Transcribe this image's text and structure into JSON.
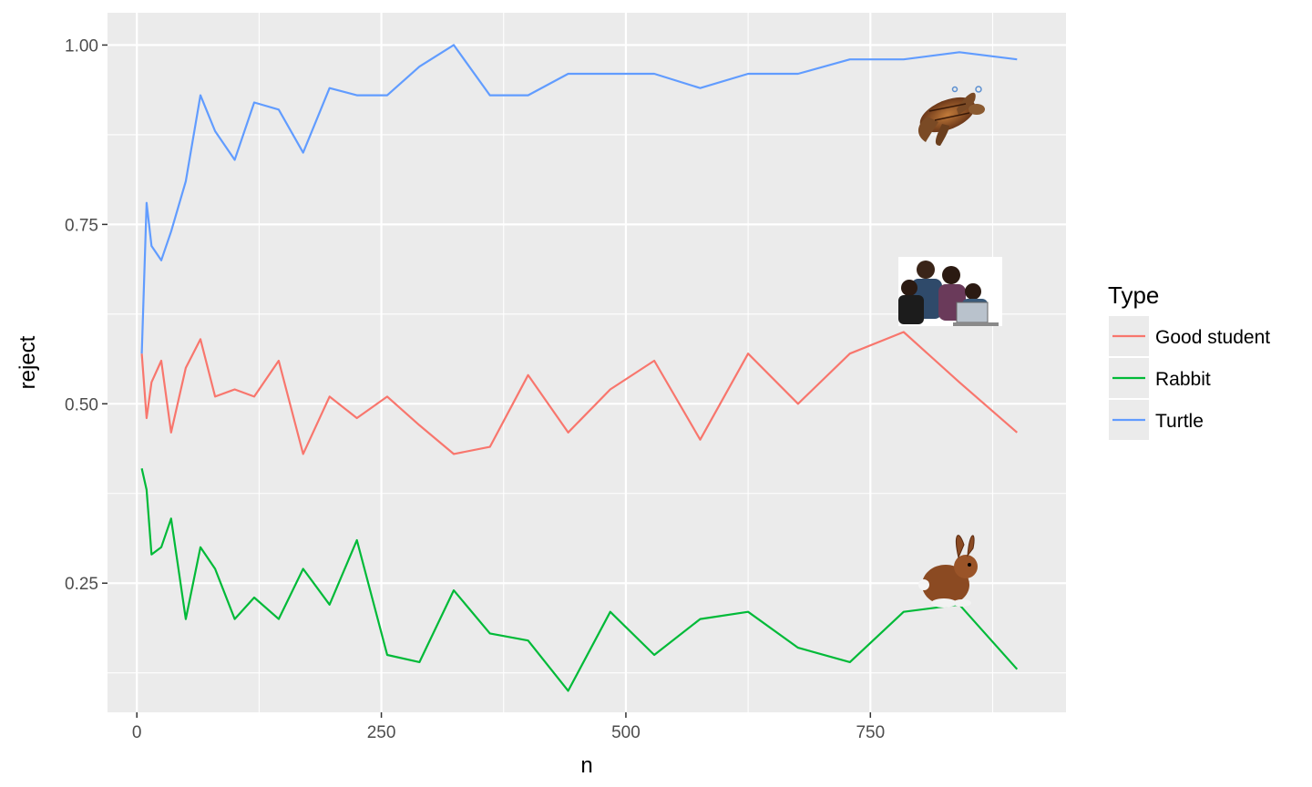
{
  "chart_data": {
    "type": "line",
    "xlabel": "n",
    "ylabel": "reject",
    "xlim": [
      -30,
      950
    ],
    "ylim": [
      0.07,
      1.045
    ],
    "x_ticks": [
      0,
      250,
      500,
      750
    ],
    "x_tick_labels": [
      "0",
      "250",
      "500",
      "750"
    ],
    "y_ticks": [
      0.25,
      0.5,
      0.75,
      1.0
    ],
    "y_tick_labels": [
      "0.25",
      "0.50",
      "0.75",
      "1.00"
    ],
    "grid": true,
    "legend": {
      "title": "Type",
      "placement": "right"
    },
    "x": [
      5,
      10,
      15,
      25,
      35,
      50,
      65,
      80,
      100,
      120,
      145,
      170,
      197,
      225,
      256,
      289,
      324,
      361,
      400,
      441,
      484,
      529,
      576,
      625,
      676,
      729,
      784,
      841,
      900
    ],
    "series": [
      {
        "name": "Good student",
        "color": "#F8766D",
        "icon": "students-photo-icon",
        "values": [
          0.57,
          0.48,
          0.53,
          0.56,
          0.46,
          0.55,
          0.59,
          0.51,
          0.52,
          0.51,
          0.56,
          0.43,
          0.51,
          0.48,
          0.51,
          0.47,
          0.43,
          0.44,
          0.54,
          0.46,
          0.52,
          0.56,
          0.45,
          0.57,
          0.5,
          0.57,
          0.6,
          0.53,
          0.46
        ]
      },
      {
        "name": "Rabbit",
        "color": "#00BA38",
        "icon": "rabbit-icon",
        "values": [
          0.41,
          0.38,
          0.29,
          0.3,
          0.34,
          0.2,
          0.3,
          0.27,
          0.2,
          0.23,
          0.2,
          0.27,
          0.22,
          0.31,
          0.15,
          0.14,
          0.24,
          0.18,
          0.17,
          0.1,
          0.21,
          0.15,
          0.2,
          0.21,
          0.16,
          0.14,
          0.21,
          0.22,
          0.13
        ]
      },
      {
        "name": "Turtle",
        "color": "#619CFF",
        "icon": "turtle-icon",
        "values": [
          0.57,
          0.78,
          0.72,
          0.7,
          0.74,
          0.81,
          0.93,
          0.88,
          0.84,
          0.92,
          0.91,
          0.85,
          0.94,
          0.93,
          0.93,
          0.97,
          1.0,
          0.93,
          0.93,
          0.96,
          0.96,
          0.96,
          0.94,
          0.96,
          0.96,
          0.98,
          0.98,
          0.99,
          0.98
        ]
      }
    ]
  },
  "colors": {
    "panel_bg": "#EBEBEB",
    "grid": "#FFFFFF",
    "tick": "#333333"
  }
}
